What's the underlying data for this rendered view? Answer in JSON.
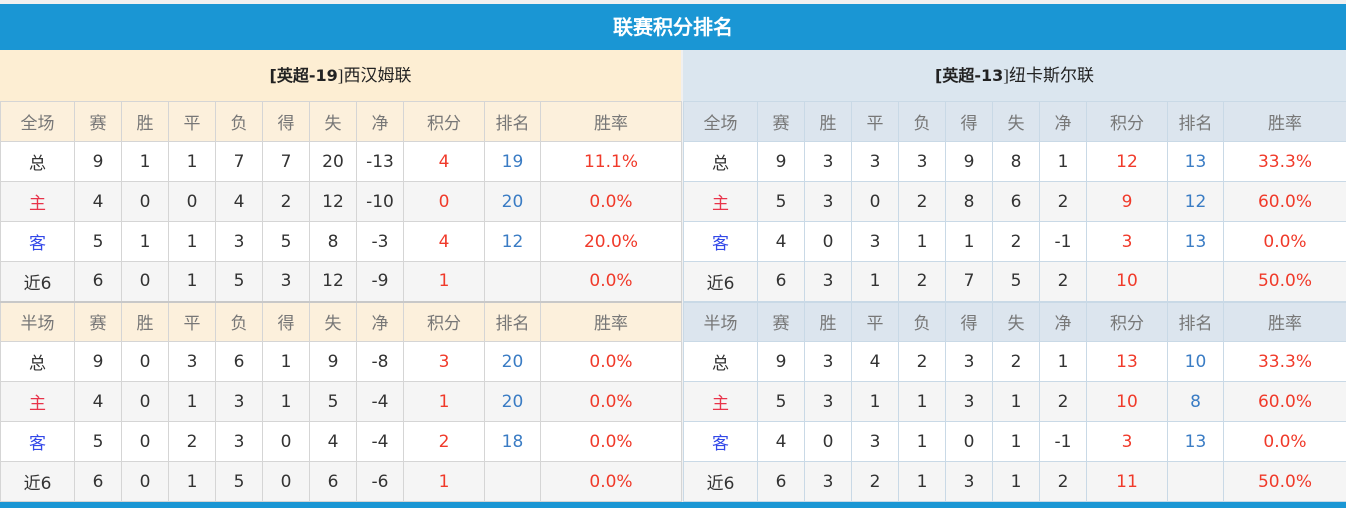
{
  "title": "联赛积分排名",
  "columns_full": [
    "全场",
    "赛",
    "胜",
    "平",
    "负",
    "得",
    "失",
    "净",
    "积分",
    "排名",
    "胜率"
  ],
  "columns_half": [
    "半场",
    "赛",
    "胜",
    "平",
    "负",
    "得",
    "失",
    "净",
    "积分",
    "排名",
    "胜率"
  ],
  "teams": [
    {
      "prefix": "[英超-",
      "rank": "19",
      "suffix": "]西汉姆联",
      "full": [
        [
          "总",
          "9",
          "1",
          "1",
          "7",
          "7",
          "20",
          "-13",
          "4",
          "19",
          "11.1%"
        ],
        [
          "主",
          "4",
          "0",
          "0",
          "4",
          "2",
          "12",
          "-10",
          "0",
          "20",
          "0.0%"
        ],
        [
          "客",
          "5",
          "1",
          "1",
          "3",
          "5",
          "8",
          "-3",
          "4",
          "12",
          "20.0%"
        ],
        [
          "近6",
          "6",
          "0",
          "1",
          "5",
          "3",
          "12",
          "-9",
          "1",
          "",
          "0.0%"
        ]
      ],
      "half": [
        [
          "总",
          "9",
          "0",
          "3",
          "6",
          "1",
          "9",
          "-8",
          "3",
          "20",
          "0.0%"
        ],
        [
          "主",
          "4",
          "0",
          "1",
          "3",
          "1",
          "5",
          "-4",
          "1",
          "20",
          "0.0%"
        ],
        [
          "客",
          "5",
          "0",
          "2",
          "3",
          "0",
          "4",
          "-4",
          "2",
          "18",
          "0.0%"
        ],
        [
          "近6",
          "6",
          "0",
          "1",
          "5",
          "0",
          "6",
          "-6",
          "1",
          "",
          "0.0%"
        ]
      ]
    },
    {
      "prefix": "[英超-",
      "rank": "13",
      "suffix": "]纽卡斯尔联",
      "full": [
        [
          "总",
          "9",
          "3",
          "3",
          "3",
          "9",
          "8",
          "1",
          "12",
          "13",
          "33.3%"
        ],
        [
          "主",
          "5",
          "3",
          "0",
          "2",
          "8",
          "6",
          "2",
          "9",
          "12",
          "60.0%"
        ],
        [
          "客",
          "4",
          "0",
          "3",
          "1",
          "1",
          "2",
          "-1",
          "3",
          "13",
          "0.0%"
        ],
        [
          "近6",
          "6",
          "3",
          "1",
          "2",
          "7",
          "5",
          "2",
          "10",
          "",
          "50.0%"
        ]
      ],
      "half": [
        [
          "总",
          "9",
          "3",
          "4",
          "2",
          "3",
          "2",
          "1",
          "13",
          "10",
          "33.3%"
        ],
        [
          "主",
          "5",
          "3",
          "1",
          "1",
          "3",
          "1",
          "2",
          "10",
          "8",
          "60.0%"
        ],
        [
          "客",
          "4",
          "0",
          "3",
          "1",
          "0",
          "1",
          "-1",
          "3",
          "13",
          "0.0%"
        ],
        [
          "近6",
          "6",
          "3",
          "2",
          "1",
          "3",
          "1",
          "2",
          "11",
          "",
          "50.0%"
        ]
      ]
    }
  ],
  "colors": {
    "accent": "#1a96d4",
    "points": "#f03a2a",
    "rank": "#3a7cc4",
    "home": "#e8334a",
    "away": "#3348e8"
  }
}
